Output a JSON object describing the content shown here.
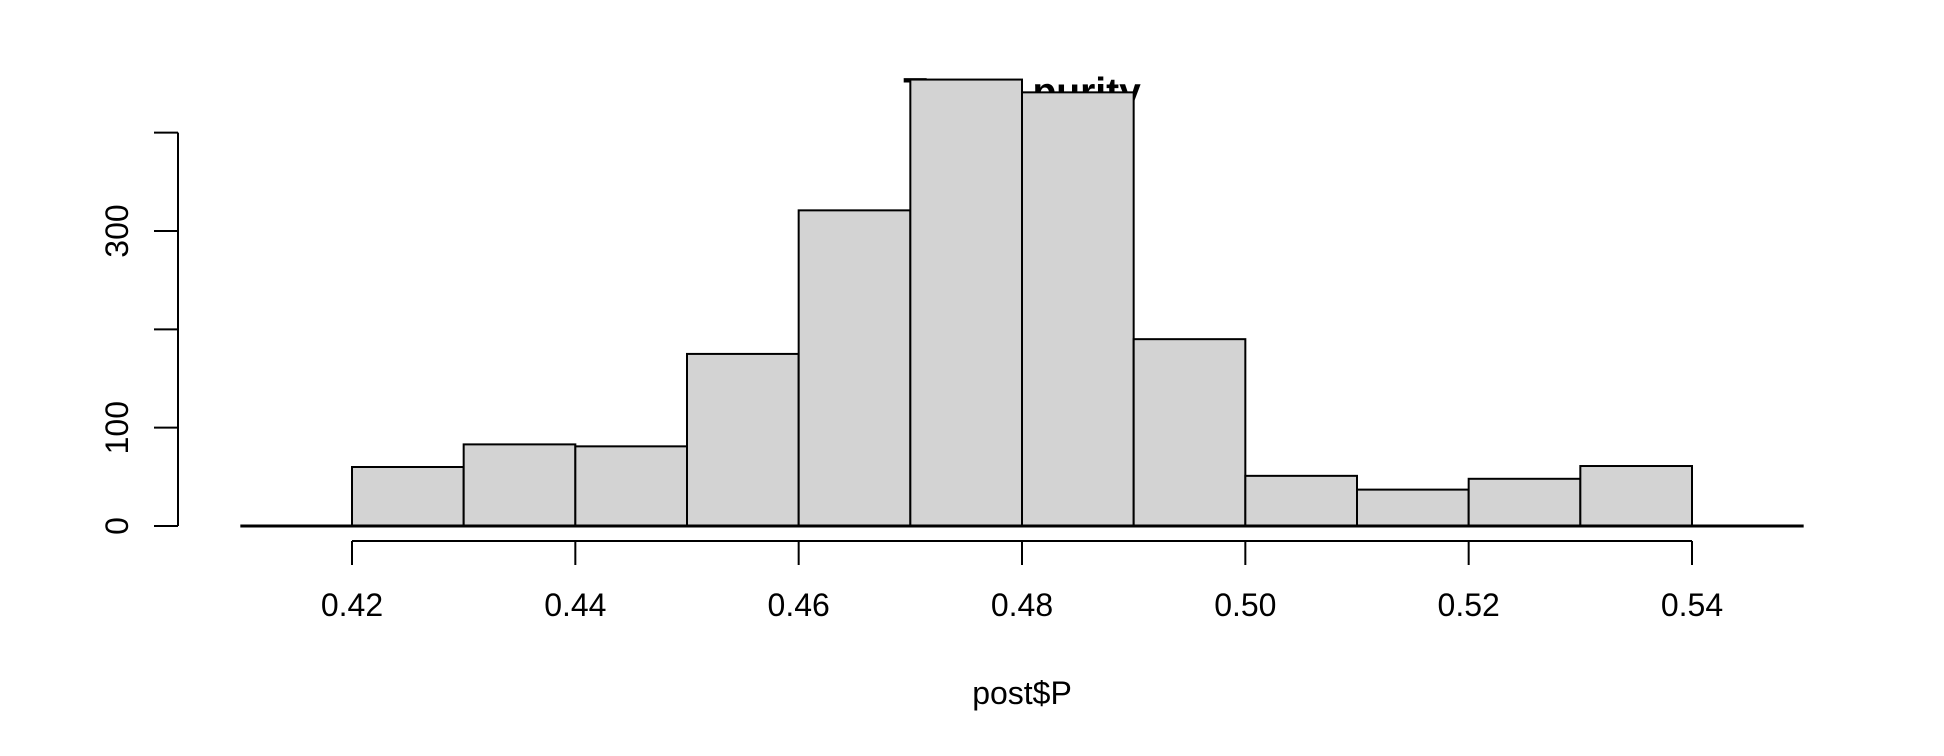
{
  "chart_data": {
    "type": "bar",
    "title": "Tumor purity",
    "xlabel": "post$P",
    "ylabel": "",
    "bin_edges": [
      0.42,
      0.43,
      0.44,
      0.45,
      0.46,
      0.47,
      0.48,
      0.49,
      0.5,
      0.51,
      0.52,
      0.53,
      0.54
    ],
    "values": [
      60,
      83,
      81,
      175,
      321,
      454,
      441,
      190,
      51,
      37,
      48,
      61
    ],
    "xlim": [
      0.41,
      0.55
    ],
    "ylim": [
      0,
      400
    ],
    "x_ticks": [
      "0.42",
      "0.44",
      "0.46",
      "0.48",
      "0.50",
      "0.52",
      "0.54"
    ],
    "y_ticks": [
      "0",
      "100",
      "300"
    ],
    "grid": false,
    "bar_color": "#d3d3d3"
  }
}
